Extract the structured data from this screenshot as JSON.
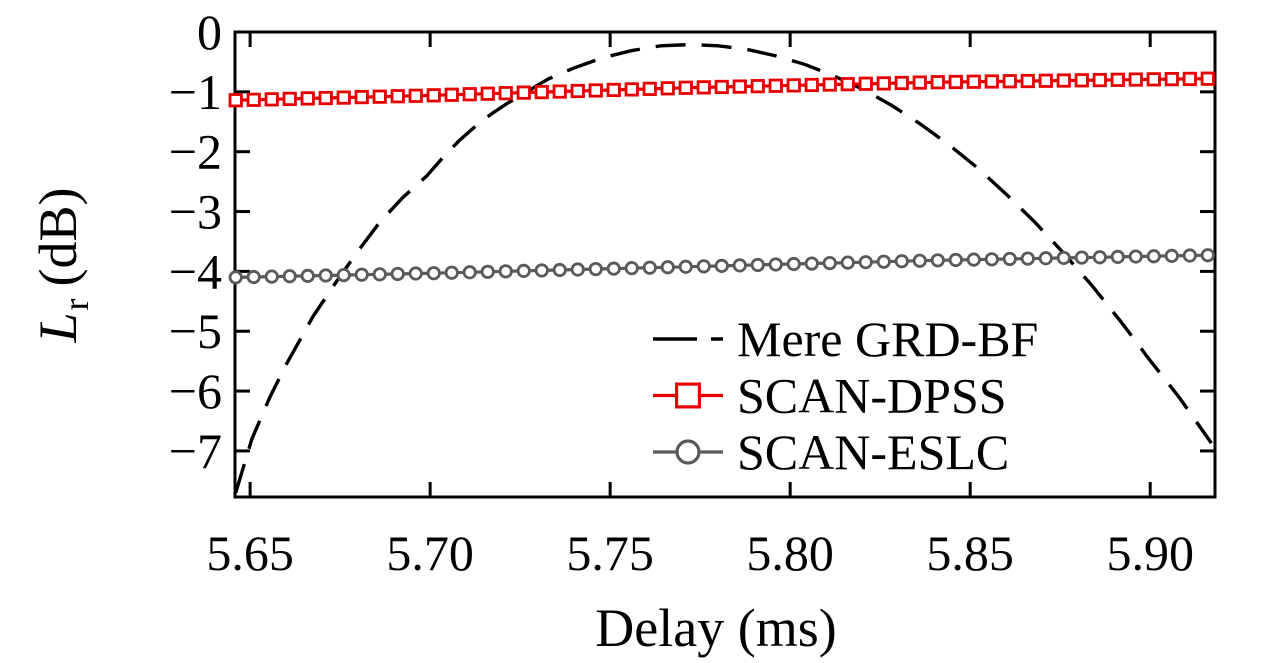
{
  "figure": {
    "background": "#ffffff",
    "axis_color": "#000000"
  },
  "chart_data": {
    "type": "line",
    "title": "",
    "xlabel": "Delay (ms)",
    "ylabel": "L_r (dB)",
    "ylabel_parts": {
      "main": "L",
      "sub": "r",
      "rest": "(dB)"
    },
    "xlim": [
      5.6458,
      5.918
    ],
    "ylim": [
      -7.77,
      0
    ],
    "grid": false,
    "x_ticks": [
      5.65,
      5.7,
      5.75,
      5.8,
      5.85,
      5.9
    ],
    "x_tick_labels": [
      "5.65",
      "5.70",
      "5.75",
      "5.80",
      "5.85",
      "5.90"
    ],
    "y_ticks": [
      0,
      -1,
      -2,
      -3,
      -4,
      -5,
      -6,
      -7
    ],
    "y_tick_labels": [
      "0",
      "−1",
      "−2",
      "−3",
      "−4",
      "−5",
      "−6",
      "−7"
    ],
    "legend": {
      "position": "inside-lower-right",
      "frame": false
    },
    "x": [
      5.646,
      5.651,
      5.656,
      5.661,
      5.666,
      5.671,
      5.676,
      5.681,
      5.686,
      5.691,
      5.696,
      5.701,
      5.706,
      5.711,
      5.716,
      5.721,
      5.726,
      5.731,
      5.736,
      5.741,
      5.746,
      5.751,
      5.756,
      5.761,
      5.766,
      5.771,
      5.776,
      5.781,
      5.786,
      5.791,
      5.796,
      5.801,
      5.806,
      5.811,
      5.816,
      5.821,
      5.826,
      5.831,
      5.836,
      5.841,
      5.846,
      5.851,
      5.856,
      5.861,
      5.866,
      5.871,
      5.876,
      5.881,
      5.886,
      5.891,
      5.896,
      5.901,
      5.906,
      5.911,
      5.916
    ],
    "series": [
      {
        "name": "Mere GRD-BF",
        "line": "dashed",
        "color": "#000000",
        "marker": "none",
        "x": [
          5.646,
          5.6505,
          5.6555,
          5.66,
          5.6675,
          5.675,
          5.6805,
          5.686,
          5.6925,
          5.699,
          5.7035,
          5.708,
          5.7125,
          5.717,
          5.7215,
          5.726,
          5.7295,
          5.733,
          5.74,
          5.748,
          5.756,
          5.764,
          5.772,
          5.78,
          5.788,
          5.796,
          5.804,
          5.812,
          5.82,
          5.828,
          5.836,
          5.844,
          5.852,
          5.86,
          5.868,
          5.876,
          5.884,
          5.892,
          5.9,
          5.908,
          5.917
        ],
        "y": [
          -7.7,
          -6.8,
          -6.1,
          -5.56,
          -4.75,
          -4.08,
          -3.62,
          -3.18,
          -2.76,
          -2.41,
          -2.1,
          -1.82,
          -1.58,
          -1.37,
          -1.19,
          -1.04,
          -0.9,
          -0.78,
          -0.6,
          -0.43,
          -0.31,
          -0.23,
          -0.21,
          -0.23,
          -0.29,
          -0.4,
          -0.54,
          -0.73,
          -0.95,
          -1.22,
          -1.53,
          -1.88,
          -2.27,
          -2.71,
          -3.18,
          -3.7,
          -4.25,
          -4.85,
          -5.49,
          -6.1,
          -6.87
        ],
        "peak": {
          "x": 5.772,
          "y": -0.21
        }
      },
      {
        "name": "SCAN-DPSS",
        "line": "solid",
        "color": "#e60000",
        "marker": "square-open",
        "y": [
          -1.14,
          -1.133,
          -1.125,
          -1.118,
          -1.11,
          -1.103,
          -1.096,
          -1.088,
          -1.081,
          -1.073,
          -1.066,
          -1.058,
          -1.049,
          -1.04,
          -1.031,
          -1.022,
          -1.013,
          -1.004,
          -0.995,
          -0.986,
          -0.977,
          -0.968,
          -0.959,
          -0.95,
          -0.941,
          -0.932,
          -0.925,
          -0.918,
          -0.912,
          -0.905,
          -0.898,
          -0.892,
          -0.885,
          -0.878,
          -0.872,
          -0.865,
          -0.859,
          -0.852,
          -0.845,
          -0.839,
          -0.835,
          -0.831,
          -0.827,
          -0.823,
          -0.819,
          -0.815,
          -0.811,
          -0.807,
          -0.803,
          -0.799,
          -0.795,
          -0.791,
          -0.787,
          -0.784,
          -0.78
        ]
      },
      {
        "name": "SCAN-ESLC",
        "line": "solid",
        "color": "#5a5a5a",
        "marker": "circle-open",
        "y": [
          -4.1,
          -4.094,
          -4.087,
          -4.081,
          -4.075,
          -4.068,
          -4.062,
          -4.055,
          -4.049,
          -4.043,
          -4.036,
          -4.03,
          -4.022,
          -4.015,
          -4.007,
          -3.999,
          -3.992,
          -3.984,
          -3.977,
          -3.969,
          -3.961,
          -3.954,
          -3.946,
          -3.938,
          -3.931,
          -3.923,
          -3.915,
          -3.908,
          -3.9,
          -3.892,
          -3.884,
          -3.877,
          -3.869,
          -3.861,
          -3.853,
          -3.846,
          -3.838,
          -3.83,
          -3.822,
          -3.815,
          -3.809,
          -3.803,
          -3.798,
          -3.792,
          -3.786,
          -3.781,
          -3.775,
          -3.769,
          -3.764,
          -3.758,
          -3.752,
          -3.747,
          -3.741,
          -3.735,
          -3.73
        ]
      }
    ]
  }
}
